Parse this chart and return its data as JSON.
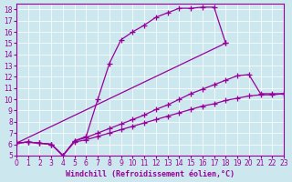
{
  "xlabel": "Windchill (Refroidissement éolien,°C)",
  "bg_color": "#cce8ee",
  "line_color": "#990099",
  "xlim": [
    0,
    23
  ],
  "ylim": [
    5,
    18.5
  ],
  "xticks": [
    0,
    1,
    2,
    3,
    4,
    5,
    6,
    7,
    8,
    9,
    10,
    11,
    12,
    13,
    14,
    15,
    16,
    17,
    18,
    19,
    20,
    21,
    22,
    23
  ],
  "yticks": [
    5,
    6,
    7,
    8,
    9,
    10,
    11,
    12,
    13,
    14,
    15,
    16,
    17,
    18
  ],
  "lines": [
    {
      "x": [
        0,
        1,
        2,
        3,
        4,
        5,
        6,
        7,
        8,
        9,
        10,
        11,
        12,
        13,
        14,
        15,
        16,
        17,
        18
      ],
      "y": [
        6.1,
        6.2,
        6.1,
        6.0,
        5.0,
        6.3,
        6.7,
        10.0,
        13.2,
        15.3,
        16.0,
        16.6,
        17.3,
        17.7,
        18.1,
        18.1,
        18.2,
        18.2,
        15.0
      ]
    },
    {
      "x": [
        0,
        18
      ],
      "y": [
        6.1,
        15.0
      ]
    },
    {
      "x": [
        0,
        1,
        2,
        3,
        4,
        5,
        6,
        7,
        8,
        9,
        10,
        11,
        12,
        13,
        14,
        15,
        16,
        17,
        18,
        19,
        20,
        21,
        22,
        23
      ],
      "y": [
        6.1,
        6.2,
        6.1,
        6.0,
        5.0,
        6.3,
        6.6,
        7.0,
        7.4,
        7.8,
        8.2,
        8.6,
        9.1,
        9.5,
        10.0,
        10.5,
        10.9,
        11.3,
        11.7,
        12.1,
        12.2,
        10.5,
        10.5,
        10.5
      ]
    },
    {
      "x": [
        0,
        1,
        2,
        3,
        4,
        5,
        6,
        7,
        8,
        9,
        10,
        11,
        12,
        13,
        14,
        15,
        16,
        17,
        18,
        19,
        20,
        21,
        22,
        23
      ],
      "y": [
        6.1,
        6.2,
        6.1,
        6.0,
        5.0,
        6.2,
        6.4,
        6.7,
        7.0,
        7.3,
        7.6,
        7.9,
        8.2,
        8.5,
        8.8,
        9.1,
        9.4,
        9.6,
        9.9,
        10.1,
        10.3,
        10.4,
        10.4,
        10.5
      ]
    }
  ],
  "marker": "+",
  "markersize": 4,
  "linewidth": 0.9,
  "grid_color": "#aacccc",
  "tick_labelsize": 5.5,
  "xlabel_fontsize": 6.0
}
